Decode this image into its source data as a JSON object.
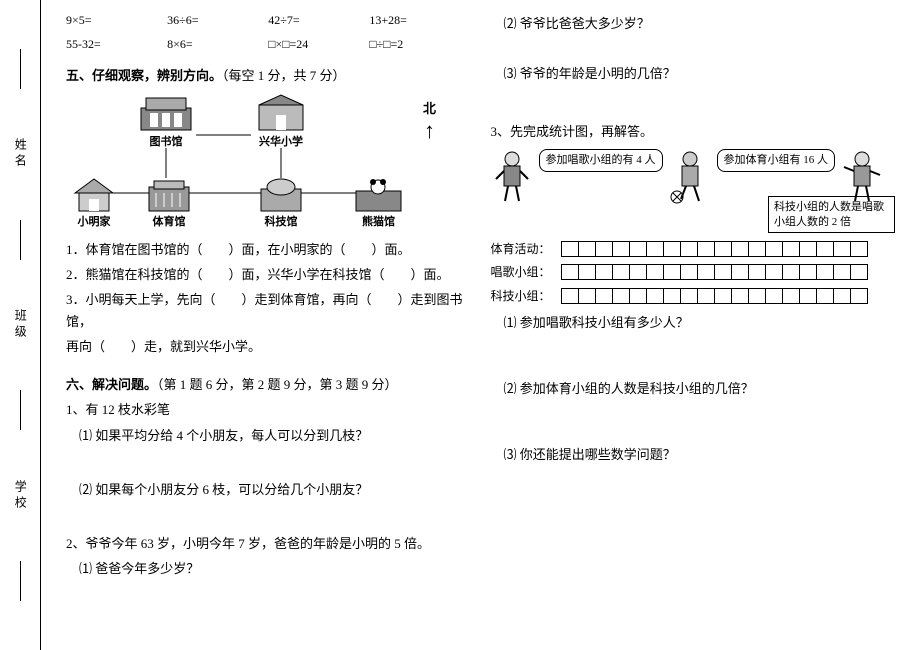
{
  "side": {
    "school": "学校",
    "class": "班级",
    "name": "姓名"
  },
  "math": {
    "row1": [
      "9×5=",
      "36÷6=",
      "42÷7=",
      "13+28="
    ],
    "row2": [
      "55-32=",
      "8×6=",
      "□×□=24",
      "□÷□=2"
    ]
  },
  "section5": {
    "title": "五、仔细观察，辨别方向。",
    "note": "（每空 1 分，共 7 分）",
    "north": "北",
    "buildings": {
      "library": "图书馆",
      "school": "兴华小学",
      "home": "小明家",
      "gym": "体育馆",
      "science": "科技馆",
      "panda": "熊猫馆"
    },
    "q1": "1．体育馆在图书馆的（　　）面，在小明家的（　　）面。",
    "q2": "2．熊猫馆在科技馆的（　　）面，兴华小学在科技馆（　　）面。",
    "q3a": "3．小明每天上学，先向（　　）走到体育馆，再向（　　）走到图书馆，",
    "q3b": "再向（　　）走，就到兴华小学。"
  },
  "section6": {
    "title": "六、解决问题。",
    "note": "（第 1 题 6 分，第 2 题 9 分，第 3 题 9 分）",
    "p1": "1、有 12 枝水彩笔",
    "p1q1": "⑴ 如果平均分给 4 个小朋友，每人可以分到几枝？",
    "p1q2": "⑵ 如果每个小朋友分 6 枝，可以分给几个小朋友？",
    "p2": "2、爷爷今年 63 岁，小明今年 7 岁，爸爸的年龄是小明的 5 倍。",
    "p2q1": "⑴ 爸爸今年多少岁？",
    "p2q2": "⑵ 爷爷比爸爸大多少岁？",
    "p2q3": "⑶ 爷爷的年龄是小明的几倍？",
    "p3": "3、先完成统计图，再解答。",
    "bubble1": "参加唱歌小组的有 4 人",
    "bubble2": "参加体育小组有 16 人",
    "bubble3": "科技小组的人数是唱歌小组人数的 2 倍",
    "stat_labels": {
      "sport": "体育活动：",
      "sing": "唱歌小组：",
      "tech": "科技小组："
    },
    "p3q1": "⑴ 参加唱歌科技小组有多少人？",
    "p3q2": "⑵ 参加体育小组的人数是科技小组的几倍？",
    "p3q3": "⑶ 你还能提出哪些数学问题？"
  },
  "style": {
    "grid_cells": 18,
    "cell_border": "#000000",
    "text_color": "#000000",
    "bg": "#ffffff"
  }
}
